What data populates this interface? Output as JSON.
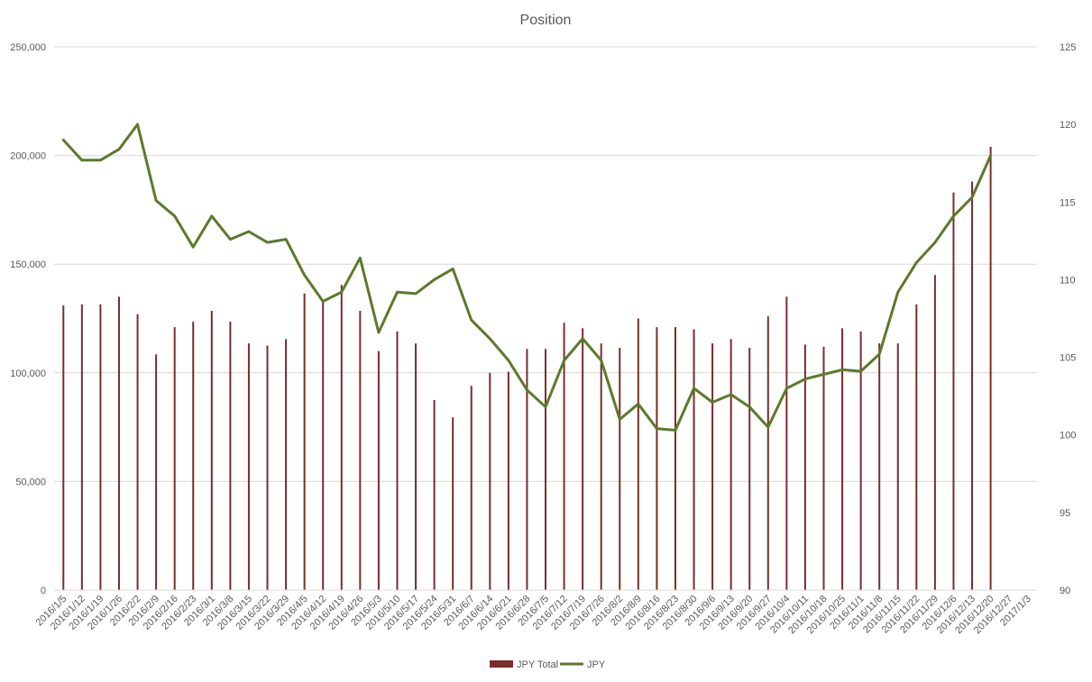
{
  "chart_data": {
    "type": "bar+line",
    "title": "Position",
    "xlabel": "",
    "ylabel_left": "",
    "ylabel_right": "",
    "ylim_left": [
      0,
      250000
    ],
    "ylim_right": [
      90,
      125
    ],
    "yticks_left": [
      "0",
      "50,000",
      "100,000",
      "150,000",
      "200,000",
      "250,000"
    ],
    "yticks_right": [
      "90",
      "95",
      "100",
      "105",
      "110",
      "115",
      "120",
      "125"
    ],
    "grid": true,
    "legend_position": "bottom",
    "categories": [
      "2016/1/5",
      "2016/1/12",
      "2016/1/19",
      "2016/1/26",
      "2016/2/2",
      "2016/2/9",
      "2016/2/16",
      "2016/2/23",
      "2016/3/1",
      "2016/3/8",
      "2016/3/15",
      "2016/3/22",
      "2016/3/29",
      "2016/4/5",
      "2016/4/12",
      "2016/4/19",
      "2016/4/26",
      "2016/5/3",
      "2016/5/10",
      "2016/5/17",
      "2016/5/24",
      "2016/5/31",
      "2016/6/7",
      "2016/6/14",
      "2016/6/21",
      "2016/6/28",
      "2016/7/5",
      "2016/7/12",
      "2016/7/19",
      "2016/7/26",
      "2016/8/2",
      "2016/8/9",
      "2016/8/16",
      "2016/8/23",
      "2016/8/30",
      "2016/9/6",
      "2016/9/13",
      "2016/9/20",
      "2016/9/27",
      "2016/10/4",
      "2016/10/11",
      "2016/10/18",
      "2016/10/25",
      "2016/11/1",
      "2016/11/8",
      "2016/11/15",
      "2016/11/22",
      "2016/11/29",
      "2016/12/6",
      "2016/12/13",
      "2016/12/20",
      "2016/12/27",
      "2017/1/3"
    ],
    "series": [
      {
        "name": "JPY Total",
        "type": "bar",
        "axis": "left",
        "color": "#7b2c2c",
        "values": [
          131000,
          131500,
          131500,
          135000,
          127000,
          108500,
          121000,
          123500,
          128500,
          123500,
          113500,
          112500,
          115500,
          136500,
          133000,
          140500,
          128500,
          110000,
          119000,
          113500,
          87500,
          79500,
          94000,
          100000,
          100500,
          111000,
          111000,
          123000,
          120500,
          113500,
          111500,
          125000,
          121000,
          121000,
          120000,
          113500,
          115500,
          111500,
          126000,
          135000,
          113000,
          112000,
          120500,
          119000,
          113500,
          113500,
          131500,
          145000,
          183000,
          188000,
          204000,
          null,
          null
        ]
      },
      {
        "name": "JPY",
        "type": "line",
        "axis": "right",
        "color": "#5b7a2d",
        "values": [
          119.0,
          117.7,
          117.7,
          118.4,
          120.0,
          115.1,
          114.1,
          112.1,
          114.1,
          112.6,
          113.1,
          112.4,
          112.6,
          110.3,
          108.6,
          109.2,
          111.4,
          106.6,
          109.2,
          109.1,
          110.0,
          110.7,
          107.4,
          106.2,
          104.8,
          102.9,
          101.8,
          104.8,
          106.2,
          104.8,
          101.0,
          102.0,
          100.4,
          100.3,
          103.0,
          102.1,
          102.6,
          101.8,
          100.5,
          103.0,
          103.6,
          103.9,
          104.2,
          104.1,
          105.2,
          109.2,
          111.1,
          112.4,
          114.1,
          115.3,
          118.0,
          null,
          null
        ]
      }
    ]
  }
}
